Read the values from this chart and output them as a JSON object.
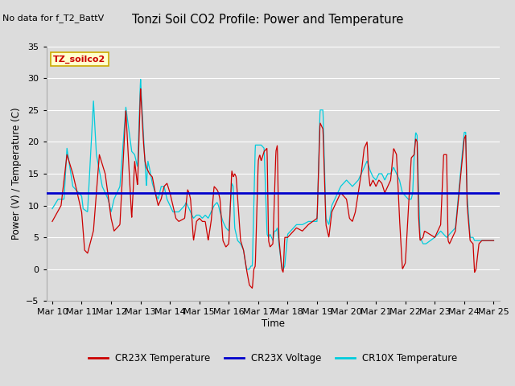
{
  "title": "Tonzi Soil CO2 Profile: Power and Temperature",
  "subtitle": "No data for f_T2_BattV",
  "ylabel": "Power (V) / Temperature (C)",
  "xlabel": "Time",
  "ylim": [
    -5,
    35
  ],
  "yticks": [
    -5,
    0,
    5,
    10,
    15,
    20,
    25,
    30,
    35
  ],
  "bg_color": "#dcdcdc",
  "plot_bg_color": "#dcdcdc",
  "cr23x_temp_color": "#cc0000",
  "cr10x_temp_color": "#00ccdd",
  "voltage_color": "#0000cc",
  "voltage_level": 12.0,
  "legend_box_color": "#ffffcc",
  "legend_box_edge": "#ccaa00",
  "xtick_labels": [
    "Mar 10",
    "Mar 11",
    "Mar 12",
    "Mar 13",
    "Mar 14",
    "Mar 15",
    "Mar 16",
    "Mar 17",
    "Mar 18",
    "Mar 19",
    "Mar 20",
    "Mar 21",
    "Mar 22",
    "Mar 23",
    "Mar 24",
    "Mar 25"
  ],
  "annotation_label": "TZ_soilco2"
}
